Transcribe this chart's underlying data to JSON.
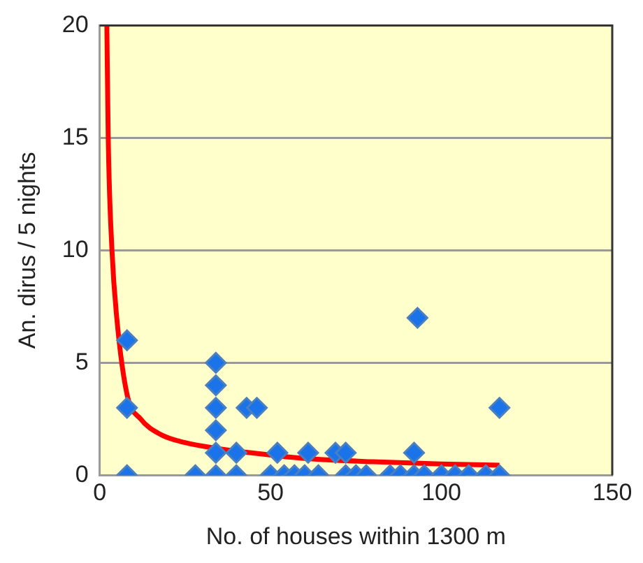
{
  "chart_data": {
    "type": "scatter",
    "xlabel": "No. of houses within 1300 m",
    "ylabel": "An. dirus / 5 nights",
    "xlim": [
      0,
      150
    ],
    "xticks": [
      0,
      50,
      100,
      150
    ],
    "ylim": [
      0,
      20
    ],
    "yticks": [
      0,
      5,
      10,
      15,
      20
    ],
    "grid": "y",
    "marker": "diamond",
    "series": [
      {
        "color": "#1a73e8",
        "x": [
          8,
          8,
          8,
          28,
          34,
          34,
          34,
          34,
          34,
          34,
          43,
          46,
          40,
          40,
          52,
          50,
          54,
          57,
          61,
          60,
          64,
          69,
          72,
          72,
          75,
          78,
          85,
          88,
          92,
          93,
          92,
          95,
          100,
          104,
          108,
          113,
          117,
          117
        ],
        "values": [
          6,
          3,
          0,
          0,
          5,
          4,
          3,
          2,
          1,
          0,
          3,
          3,
          1,
          0,
          1,
          0,
          0,
          0,
          1,
          0,
          0,
          1,
          1,
          0,
          0,
          0,
          0,
          0,
          1,
          7,
          0,
          0,
          0,
          0,
          0,
          0,
          3,
          0
        ]
      },
      {
        "type": "line",
        "marker": "none",
        "color": "#ff0000",
        "x": [
          2.1,
          2.5,
          3.6,
          5,
          8,
          12,
          18,
          25,
          34,
          50,
          60,
          80,
          100,
          117
        ],
        "values": [
          20,
          15,
          10,
          7,
          3.6,
          2.5,
          1.8,
          1.45,
          1.2,
          0.9,
          0.75,
          0.6,
          0.5,
          0.45
        ]
      }
    ]
  }
}
